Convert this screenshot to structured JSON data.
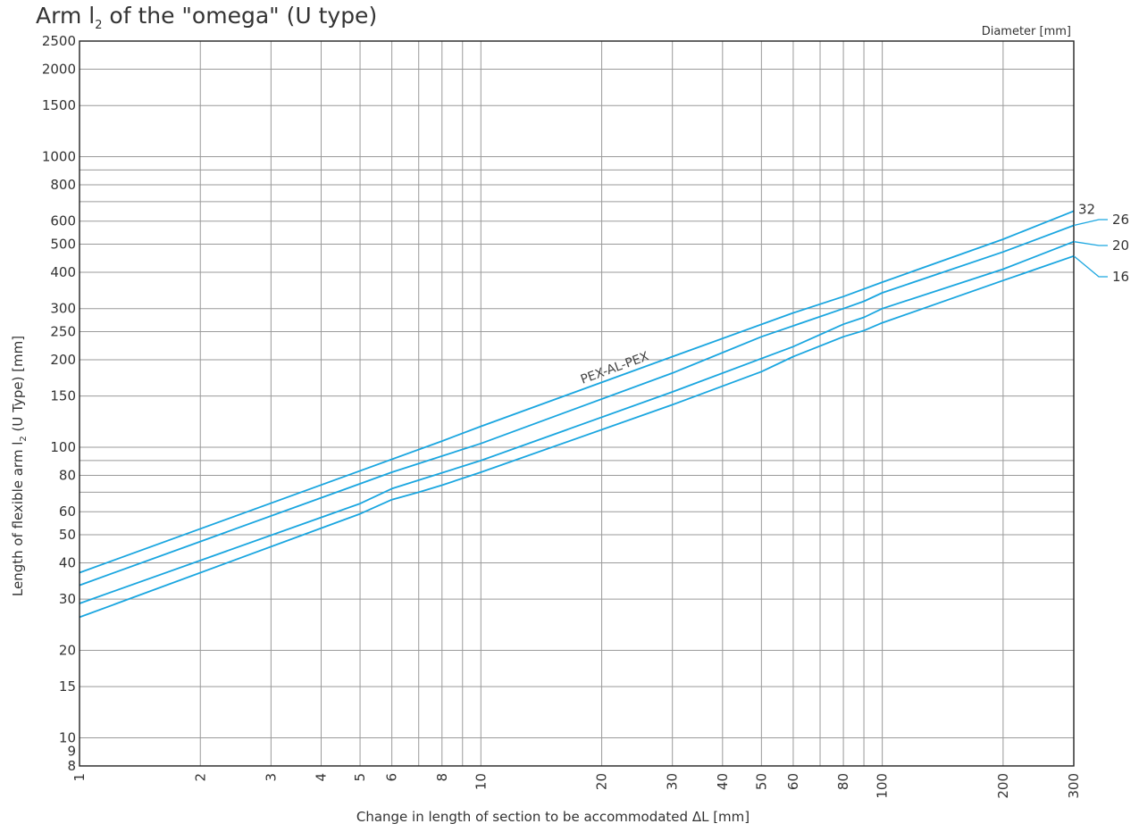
{
  "chart_data": {
    "type": "line",
    "title": "Arm l",
    "title_subscript": "2",
    "title_rest": " of the \"omega\" (U type)",
    "xlabel": "Change in length of section to be accommodated ΔL [mm]",
    "ylabel": "Length of flexible arm l",
    "ylabel_subscript": "2",
    "ylabel_rest": " (U Type) [mm]",
    "legend_title": "Diameter [mm]",
    "x_scale": "log",
    "y_scale": "log",
    "xlim": [
      1,
      300
    ],
    "ylim": [
      8,
      2500
    ],
    "grid": true,
    "line_color": "#1aa6e0",
    "grid_color": "#9a9a9a",
    "x_gridlines": [
      1,
      2,
      3,
      4,
      5,
      6,
      7,
      8,
      9,
      10,
      20,
      30,
      40,
      50,
      60,
      70,
      80,
      90,
      100,
      200,
      300
    ],
    "x_ticks": [
      {
        "value": 1,
        "label": "1"
      },
      {
        "value": 2,
        "label": "2"
      },
      {
        "value": 3,
        "label": "3"
      },
      {
        "value": 4,
        "label": "4"
      },
      {
        "value": 5,
        "label": "5"
      },
      {
        "value": 6,
        "label": "6"
      },
      {
        "value": 8,
        "label": "8"
      },
      {
        "value": 10,
        "label": "10"
      },
      {
        "value": 20,
        "label": "20"
      },
      {
        "value": 30,
        "label": "30"
      },
      {
        "value": 40,
        "label": "40"
      },
      {
        "value": 50,
        "label": "50"
      },
      {
        "value": 60,
        "label": "60"
      },
      {
        "value": 80,
        "label": "80"
      },
      {
        "value": 100,
        "label": "100"
      },
      {
        "value": 200,
        "label": "200"
      },
      {
        "value": 300,
        "label": "300"
      }
    ],
    "y_gridlines": [
      8,
      10,
      15,
      20,
      30,
      40,
      50,
      60,
      70,
      80,
      90,
      100,
      150,
      200,
      250,
      300,
      400,
      500,
      600,
      700,
      800,
      900,
      1000,
      1500,
      2000,
      2500
    ],
    "y_ticks": [
      {
        "value": 8,
        "label": "8"
      },
      {
        "value": 9,
        "label": "9"
      },
      {
        "value": 10,
        "label": "10"
      },
      {
        "value": 15,
        "label": "15"
      },
      {
        "value": 20,
        "label": "20"
      },
      {
        "value": 30,
        "label": "30"
      },
      {
        "value": 40,
        "label": "40"
      },
      {
        "value": 50,
        "label": "50"
      },
      {
        "value": 60,
        "label": "60"
      },
      {
        "value": 80,
        "label": "80"
      },
      {
        "value": 100,
        "label": "100"
      },
      {
        "value": 150,
        "label": "150"
      },
      {
        "value": 200,
        "label": "200"
      },
      {
        "value": 250,
        "label": "250"
      },
      {
        "value": 300,
        "label": "300"
      },
      {
        "value": 400,
        "label": "400"
      },
      {
        "value": 500,
        "label": "500"
      },
      {
        "value": 600,
        "label": "600"
      },
      {
        "value": 800,
        "label": "800"
      },
      {
        "value": 1000,
        "label": "1000"
      },
      {
        "value": 1500,
        "label": "1500"
      },
      {
        "value": 2000,
        "label": "2000"
      },
      {
        "value": 2500,
        "label": "2500"
      }
    ],
    "annotation": "PEX-AL-PEX",
    "series": [
      {
        "name": "32",
        "x": [
          1,
          8,
          10,
          30,
          60,
          80,
          100,
          200,
          300
        ],
        "y": [
          37,
          105,
          118,
          205,
          290,
          330,
          370,
          520,
          650
        ]
      },
      {
        "name": "26",
        "x": [
          1,
          6,
          10,
          30,
          50,
          80,
          90,
          100,
          200,
          300
        ],
        "y": [
          33.5,
          82,
          103,
          180,
          240,
          300,
          318,
          340,
          470,
          580
        ]
      },
      {
        "name": "20",
        "x": [
          1,
          5,
          6,
          7,
          10,
          30,
          60,
          80,
          90,
          100,
          200,
          300
        ],
        "y": [
          29,
          64,
          72,
          77,
          90,
          155,
          222,
          265,
          280,
          300,
          410,
          510
        ]
      },
      {
        "name": "16",
        "x": [
          1,
          5,
          6,
          7,
          8,
          10,
          30,
          50,
          60,
          80,
          90,
          100,
          200,
          300
        ],
        "y": [
          26,
          59,
          66,
          70,
          74,
          82,
          140,
          182,
          205,
          240,
          252,
          268,
          375,
          455
        ]
      }
    ]
  }
}
